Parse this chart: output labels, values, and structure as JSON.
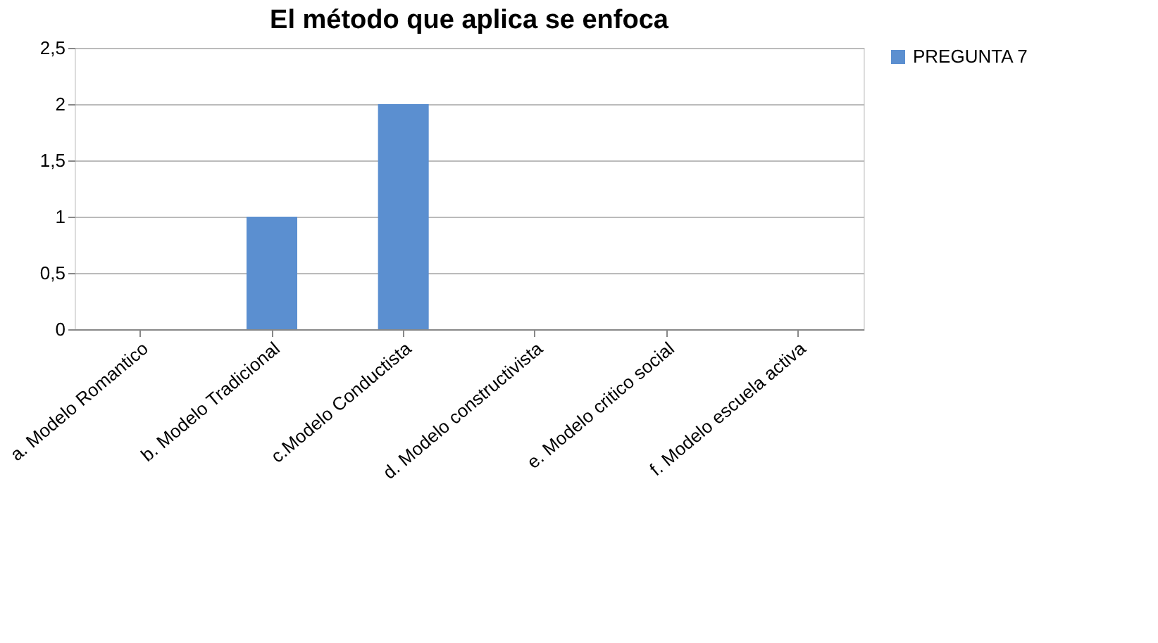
{
  "chart_data": {
    "type": "bar",
    "title": "El método que aplica se enfoca",
    "categories": [
      "a. Modelo Romantico",
      "b. Modelo Tradicional",
      "c.Modelo Conductista",
      "d. Modelo constructivista",
      "e. Modelo critico social",
      "f. Modelo escuela activa"
    ],
    "series": [
      {
        "name": "PREGUNTA 7",
        "color": "#5b8fd0",
        "values": [
          0,
          1,
          2,
          0,
          0,
          0
        ]
      }
    ],
    "ylim": [
      0,
      2.5
    ],
    "yticks": [
      0,
      {
        "value": 0.5,
        "label": "0,5"
      },
      1,
      {
        "value": 1.5,
        "label": "1,5"
      },
      2,
      {
        "value": 2.5,
        "label": "2,5"
      }
    ],
    "grid": "y",
    "legend": "right"
  }
}
